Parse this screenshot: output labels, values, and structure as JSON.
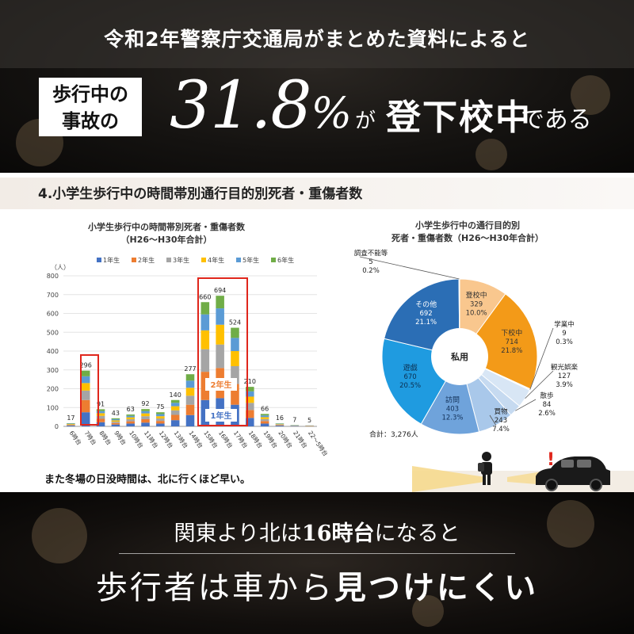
{
  "header": {
    "headline": "令和2年警察庁交通局がまとめた資料によると",
    "tag_line1": "歩行中の",
    "tag_line2": "事故の",
    "big_number": "31.8",
    "big_pct": "%",
    "particle": "が",
    "main": "登下校中",
    "tail": "である"
  },
  "section": {
    "title": "4.小学生歩行中の時間帯別通行目的別死者・重傷者数"
  },
  "chart_data": [
    {
      "type": "bar",
      "title": "小学生歩行中の時間帯別死者・重傷者数",
      "subtitle": "（H26〜H30年合計）",
      "ylabel": "（人）",
      "ylim": [
        0,
        800
      ],
      "yticks": [
        "0",
        "100",
        "200",
        "300",
        "400",
        "500",
        "600",
        "700",
        "800"
      ],
      "categories": [
        "6時台",
        "7時台",
        "8時台",
        "9時台",
        "10時台",
        "11時台",
        "12時台",
        "13時台",
        "14時台",
        "15時台",
        "16時台",
        "17時台",
        "18時台",
        "19時台",
        "20時台",
        "21時台",
        "22〜5時台"
      ],
      "totals": [
        17,
        296,
        91,
        43,
        63,
        92,
        75,
        140,
        277,
        660,
        694,
        524,
        210,
        66,
        16,
        7,
        5
      ],
      "series": [
        {
          "name": "1年生",
          "color": "#4472c4",
          "values": [
            4,
            75,
            22,
            10,
            15,
            20,
            15,
            33,
            60,
            140,
            150,
            115,
            45,
            15,
            4,
            2,
            1
          ]
        },
        {
          "name": "2年生",
          "color": "#ed7d31",
          "values": [
            3,
            65,
            18,
            8,
            12,
            18,
            14,
            28,
            55,
            150,
            160,
            110,
            42,
            13,
            3,
            1,
            1
          ]
        },
        {
          "name": "3年生",
          "color": "#a5a5a5",
          "values": [
            3,
            50,
            16,
            7,
            11,
            16,
            13,
            24,
            48,
            120,
            125,
            95,
            38,
            11,
            3,
            1,
            1
          ]
        },
        {
          "name": "4年生",
          "color": "#ffc000",
          "values": [
            3,
            40,
            14,
            7,
            10,
            15,
            12,
            22,
            42,
            100,
            105,
            80,
            33,
            10,
            2,
            1,
            1
          ]
        },
        {
          "name": "5年生",
          "color": "#5b9bd5",
          "values": [
            2,
            36,
            11,
            6,
            8,
            12,
            11,
            18,
            38,
            85,
            87,
            70,
            28,
            9,
            2,
            1,
            1
          ]
        },
        {
          "name": "6年生",
          "color": "#70ad47",
          "values": [
            2,
            30,
            10,
            5,
            7,
            11,
            10,
            15,
            34,
            65,
            67,
            54,
            24,
            8,
            2,
            1,
            0
          ]
        }
      ],
      "annotations": [
        "2年生",
        "1年生"
      ],
      "note": "また冬場の日没時間は、北に行くほど早い。"
    },
    {
      "type": "pie",
      "title_line1": "小学生歩行中の通行目的別",
      "title_line2": "死者・重傷者数（H26〜H30年合計）",
      "center_label": "私用",
      "total_label": "合計：3,276人",
      "slices": [
        {
          "label": "登校中",
          "value": 329,
          "count": "329",
          "pct": "10.0%",
          "color": "#f9c78e"
        },
        {
          "label": "下校中",
          "value": 714,
          "count": "714",
          "pct": "21.8%",
          "color": "#f39a18"
        },
        {
          "label": "学業中",
          "value": 9,
          "count": "9",
          "pct": "0.3%",
          "color": "#eef4fb"
        },
        {
          "label": "観光娯楽",
          "value": 127,
          "count": "127",
          "pct": "3.9%",
          "color": "#d8e6f5"
        },
        {
          "label": "散歩",
          "value": 84,
          "count": "84",
          "pct": "2.6%",
          "color": "#c6daf0"
        },
        {
          "label": "買物",
          "value": 243,
          "count": "243",
          "pct": "7.4%",
          "color": "#a9c8ea"
        },
        {
          "label": "訪問",
          "value": 403,
          "count": "403",
          "pct": "12.3%",
          "color": "#6fa3db"
        },
        {
          "label": "遊戯",
          "value": 670,
          "count": "670",
          "pct": "20.5%",
          "color": "#1f9be0"
        },
        {
          "label": "その他",
          "value": 692,
          "count": "692",
          "pct": "21.1%",
          "color": "#2b6eb5"
        },
        {
          "label": "調査不能等",
          "value": 5,
          "count": "5",
          "pct": "0.2%",
          "color": "#1d4e89"
        }
      ]
    }
  ],
  "bottom": {
    "line1_a": "関東より北は",
    "line1_b": "16時台",
    "line1_c": "になると",
    "line2_a": "歩行者は車から",
    "line2_b": "見つけにくい"
  },
  "colors": {
    "highlight_red": "#e0261c",
    "dark_bg": "#131110"
  },
  "icons": [
    "exclamation-icon",
    "car-icon",
    "child-silhouette-icon"
  ]
}
